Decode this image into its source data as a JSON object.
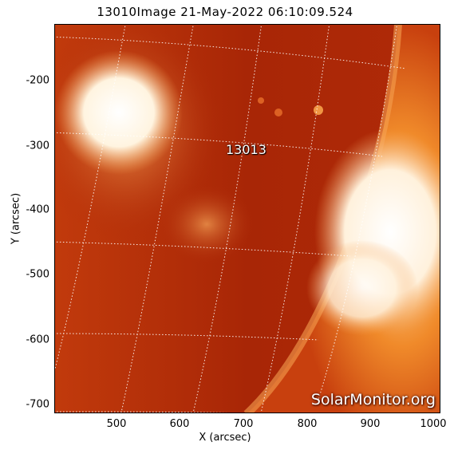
{
  "title": "13010Image 21-May-2022 06:10:09.524",
  "axes": {
    "xlabel": "X (arcsec)",
    "ylabel": "Y (arcsec)",
    "x_ticks": [
      "500",
      "600",
      "700",
      "800",
      "900",
      "1000"
    ],
    "y_ticks": [
      "-200",
      "-300",
      "-400",
      "-500",
      "-600",
      "-700"
    ]
  },
  "region_label": "13013",
  "watermark": "SolarMonitor.org",
  "colors": {
    "disk": "#b02a08",
    "limb_corona": "#e8701a",
    "bright_region": "#ffffff"
  }
}
